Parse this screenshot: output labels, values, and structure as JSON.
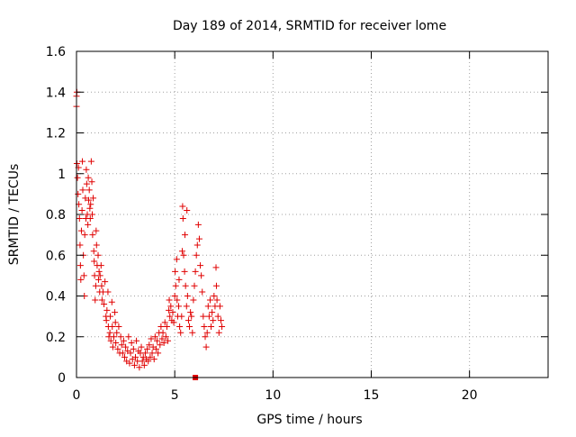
{
  "chart_data": {
    "type": "scatter",
    "title": "Day 189 of 2014, SRMTID for receiver lome",
    "xlabel": "GPS time / hours",
    "ylabel": "SRMTID / TECUs",
    "xlim": [
      0,
      24
    ],
    "ylim": [
      0,
      1.6
    ],
    "x_ticks": [
      0,
      5,
      10,
      15,
      20
    ],
    "x_tick_labels": [
      "0",
      "5",
      "10",
      "15",
      "20"
    ],
    "y_ticks": [
      0,
      0.2,
      0.4,
      0.6,
      0.8,
      1.0,
      1.2,
      1.4,
      1.6
    ],
    "y_tick_labels": [
      "0",
      "0.2",
      "0.4",
      "0.6",
      "0.8",
      "1",
      "1.2",
      "1.4",
      "1.6"
    ],
    "grid": true,
    "marker": "plus",
    "marker_color": "#e00000",
    "series": [
      {
        "points": [
          [
            0.0,
            1.38
          ],
          [
            0.0,
            1.33
          ],
          [
            0.02,
            1.4
          ],
          [
            0.02,
            1.05
          ],
          [
            0.05,
            0.98
          ],
          [
            0.08,
            0.9
          ],
          [
            0.1,
            1.03
          ],
          [
            0.12,
            0.85
          ],
          [
            0.15,
            0.78
          ],
          [
            0.18,
            0.65
          ],
          [
            0.2,
            0.55
          ],
          [
            0.22,
            0.48
          ],
          [
            0.25,
            0.72
          ],
          [
            0.28,
            0.82
          ],
          [
            0.3,
            1.06
          ],
          [
            0.32,
            0.92
          ],
          [
            0.35,
            0.6
          ],
          [
            0.38,
            0.5
          ],
          [
            0.4,
            0.4
          ],
          [
            0.42,
            0.7
          ],
          [
            0.45,
            0.88
          ],
          [
            0.48,
            0.78
          ],
          [
            0.5,
            1.02
          ],
          [
            0.52,
            0.95
          ],
          [
            0.55,
            0.8
          ],
          [
            0.58,
            0.75
          ],
          [
            0.6,
            0.98
          ],
          [
            0.62,
            0.87
          ],
          [
            0.65,
            0.92
          ],
          [
            0.68,
            0.83
          ],
          [
            0.7,
            0.78
          ],
          [
            0.72,
            0.85
          ],
          [
            0.75,
            1.06
          ],
          [
            0.78,
            0.96
          ],
          [
            0.8,
            0.8
          ],
          [
            0.82,
            0.7
          ],
          [
            0.85,
            0.88
          ],
          [
            0.88,
            0.62
          ],
          [
            0.9,
            0.57
          ],
          [
            0.92,
            0.5
          ],
          [
            0.95,
            0.38
          ],
          [
            0.98,
            0.45
          ],
          [
            1.0,
            0.72
          ],
          [
            1.02,
            0.65
          ],
          [
            1.05,
            0.55
          ],
          [
            1.1,
            0.6
          ],
          [
            1.12,
            0.48
          ],
          [
            1.15,
            0.52
          ],
          [
            1.18,
            0.42
          ],
          [
            1.2,
            0.5
          ],
          [
            1.25,
            0.55
          ],
          [
            1.28,
            0.45
          ],
          [
            1.3,
            0.38
          ],
          [
            1.35,
            0.42
          ],
          [
            1.4,
            0.36
          ],
          [
            1.45,
            0.47
          ],
          [
            1.5,
            0.3
          ],
          [
            1.52,
            0.28
          ],
          [
            1.55,
            0.33
          ],
          [
            1.6,
            0.42
          ],
          [
            1.62,
            0.25
          ],
          [
            1.65,
            0.2
          ],
          [
            1.7,
            0.22
          ],
          [
            1.72,
            0.3
          ],
          [
            1.75,
            0.18
          ],
          [
            1.8,
            0.37
          ],
          [
            1.82,
            0.25
          ],
          [
            1.85,
            0.15
          ],
          [
            1.9,
            0.2
          ],
          [
            1.95,
            0.32
          ],
          [
            1.98,
            0.27
          ],
          [
            2.0,
            0.17
          ],
          [
            2.05,
            0.22
          ],
          [
            2.1,
            0.14
          ],
          [
            2.15,
            0.25
          ],
          [
            2.2,
            0.12
          ],
          [
            2.25,
            0.2
          ],
          [
            2.3,
            0.16
          ],
          [
            2.35,
            0.12
          ],
          [
            2.4,
            0.18
          ],
          [
            2.45,
            0.1
          ],
          [
            2.5,
            0.15
          ],
          [
            2.55,
            0.08
          ],
          [
            2.6,
            0.13
          ],
          [
            2.65,
            0.2
          ],
          [
            2.7,
            0.07
          ],
          [
            2.75,
            0.12
          ],
          [
            2.8,
            0.17
          ],
          [
            2.85,
            0.09
          ],
          [
            2.9,
            0.14
          ],
          [
            2.95,
            0.06
          ],
          [
            3.0,
            0.1
          ],
          [
            3.05,
            0.18
          ],
          [
            3.1,
            0.08
          ],
          [
            3.15,
            0.13
          ],
          [
            3.2,
            0.05
          ],
          [
            3.25,
            0.12
          ],
          [
            3.3,
            0.15
          ],
          [
            3.35,
            0.08
          ],
          [
            3.4,
            0.1
          ],
          [
            3.45,
            0.06
          ],
          [
            3.5,
            0.12
          ],
          [
            3.55,
            0.09
          ],
          [
            3.6,
            0.14
          ],
          [
            3.65,
            0.08
          ],
          [
            3.7,
            0.16
          ],
          [
            3.75,
            0.1
          ],
          [
            3.8,
            0.19
          ],
          [
            3.85,
            0.12
          ],
          [
            3.9,
            0.15
          ],
          [
            3.95,
            0.09
          ],
          [
            4.0,
            0.2
          ],
          [
            4.05,
            0.14
          ],
          [
            4.1,
            0.18
          ],
          [
            4.15,
            0.12
          ],
          [
            4.2,
            0.22
          ],
          [
            4.25,
            0.16
          ],
          [
            4.3,
            0.25
          ],
          [
            4.35,
            0.19
          ],
          [
            4.4,
            0.22
          ],
          [
            4.45,
            0.17
          ],
          [
            4.5,
            0.27
          ],
          [
            4.55,
            0.2
          ],
          [
            4.6,
            0.25
          ],
          [
            4.65,
            0.18
          ],
          [
            4.7,
            0.33
          ],
          [
            4.72,
            0.38
          ],
          [
            4.75,
            0.3
          ],
          [
            4.8,
            0.35
          ],
          [
            4.85,
            0.28
          ],
          [
            4.9,
            0.32
          ],
          [
            4.95,
            0.27
          ],
          [
            5.0,
            0.4
          ],
          [
            5.02,
            0.52
          ],
          [
            5.05,
            0.45
          ],
          [
            5.1,
            0.58
          ],
          [
            5.12,
            0.38
          ],
          [
            5.15,
            0.3
          ],
          [
            5.2,
            0.35
          ],
          [
            5.22,
            0.48
          ],
          [
            5.25,
            0.25
          ],
          [
            5.3,
            0.22
          ],
          [
            5.35,
            0.3
          ],
          [
            5.38,
            0.62
          ],
          [
            5.4,
            0.84
          ],
          [
            5.42,
            0.78
          ],
          [
            5.45,
            0.6
          ],
          [
            5.5,
            0.52
          ],
          [
            5.52,
            0.7
          ],
          [
            5.55,
            0.45
          ],
          [
            5.6,
            0.35
          ],
          [
            5.62,
            0.82
          ],
          [
            5.65,
            0.4
          ],
          [
            5.7,
            0.28
          ],
          [
            5.75,
            0.25
          ],
          [
            5.8,
            0.32
          ],
          [
            5.85,
            0.3
          ],
          [
            5.9,
            0.22
          ],
          [
            5.95,
            0.38
          ],
          [
            6.0,
            0.45
          ],
          [
            6.05,
            0.52
          ],
          [
            6.1,
            0.6
          ],
          [
            6.15,
            0.65
          ],
          [
            6.2,
            0.75
          ],
          [
            6.25,
            0.68
          ],
          [
            6.3,
            0.55
          ],
          [
            6.35,
            0.5
          ],
          [
            6.4,
            0.42
          ],
          [
            6.45,
            0.3
          ],
          [
            6.5,
            0.25
          ],
          [
            6.55,
            0.2
          ],
          [
            6.6,
            0.15
          ],
          [
            6.65,
            0.22
          ],
          [
            6.7,
            0.35
          ],
          [
            6.75,
            0.3
          ],
          [
            6.8,
            0.38
          ],
          [
            6.85,
            0.25
          ],
          [
            6.9,
            0.32
          ],
          [
            6.95,
            0.28
          ],
          [
            7.0,
            0.4
          ],
          [
            7.05,
            0.35
          ],
          [
            7.1,
            0.54
          ],
          [
            7.12,
            0.45
          ],
          [
            7.15,
            0.38
          ],
          [
            7.2,
            0.3
          ],
          [
            7.25,
            0.22
          ],
          [
            7.3,
            0.35
          ],
          [
            7.35,
            0.28
          ],
          [
            7.4,
            0.25
          ]
        ]
      }
    ],
    "square_markers": [
      [
        6.05,
        0.0
      ]
    ]
  }
}
